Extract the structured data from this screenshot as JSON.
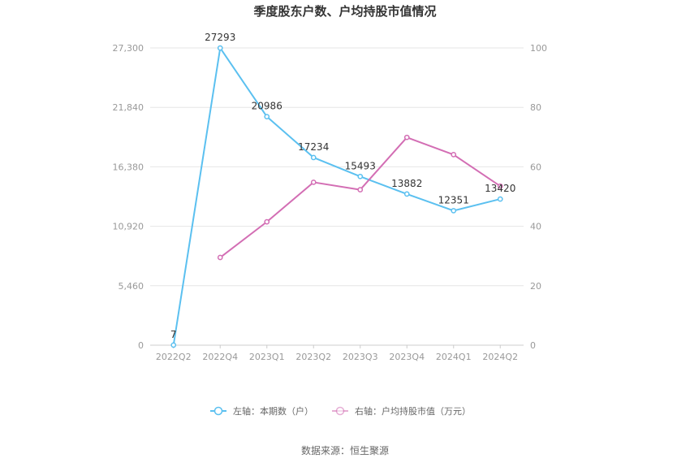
{
  "chart_data": {
    "type": "line",
    "title": "季度股东户数、户均持股市值情况",
    "categories": [
      "2022Q2",
      "2022Q4",
      "2023Q1",
      "2023Q2",
      "2023Q3",
      "2023Q4",
      "2024Q1",
      "2024Q2"
    ],
    "left_axis": {
      "ticks": [
        "0",
        "5,460",
        "10,920",
        "16,380",
        "21,840",
        "27,300"
      ],
      "ylim": [
        0,
        27300
      ]
    },
    "right_axis": {
      "ticks": [
        "0",
        "20",
        "40",
        "60",
        "80",
        "100"
      ],
      "ylim": [
        0,
        100
      ]
    },
    "grid": true,
    "series": [
      {
        "name": "左轴：本期数（户）",
        "axis": "left",
        "color": "#5bc0f0",
        "values": [
          7,
          27293,
          20986,
          17234,
          15493,
          13882,
          12351,
          13420
        ],
        "labels": [
          "7",
          "27293",
          "20986",
          "17234",
          "15493",
          "13882",
          "12351",
          "13420"
        ]
      },
      {
        "name": "右轴：户均持股市值（万元）",
        "axis": "right",
        "color": "#d36eb4",
        "values": [
          null,
          29.5,
          41.5,
          54.8,
          52.3,
          69.9,
          64.1,
          53.5
        ]
      }
    ],
    "legend_position": "bottom",
    "source": "数据来源：恒生聚源"
  }
}
